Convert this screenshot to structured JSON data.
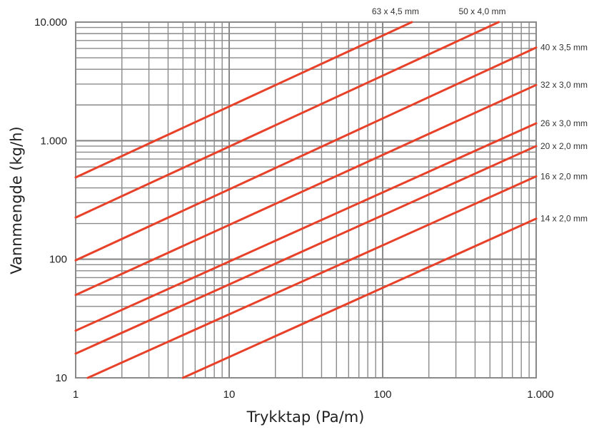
{
  "chart_data": {
    "type": "line",
    "xlabel": "Trykktap (Pa/m)",
    "ylabel": "Vannmengde (kg/h)",
    "x_scale": "log",
    "y_scale": "log",
    "xlim": [
      1,
      1000
    ],
    "ylim": [
      10,
      10000
    ],
    "grid": true,
    "x_ticks": [
      {
        "value": 1,
        "label": "1"
      },
      {
        "value": 10,
        "label": "10"
      },
      {
        "value": 100,
        "label": "100"
      },
      {
        "value": 1000,
        "label": "1.000"
      }
    ],
    "y_ticks": [
      {
        "value": 10,
        "label": "10"
      },
      {
        "value": 100,
        "label": "100"
      },
      {
        "value": 1000,
        "label": "1.000"
      },
      {
        "value": 10000,
        "label": "10.000"
      }
    ],
    "line_color": "#e8412a",
    "grid_color": "#8a8a8a",
    "series": [
      {
        "name": "63 x 4,5 mm",
        "x": [
          1,
          155
        ],
        "y": [
          490,
          10000
        ]
      },
      {
        "name": "50 x 4,0 mm",
        "x": [
          1,
          570
        ],
        "y": [
          225,
          10000
        ]
      },
      {
        "name": "40 x 3,5 mm",
        "x": [
          1,
          1000
        ],
        "y": [
          98,
          6100
        ]
      },
      {
        "name": "32 x 3,0 mm",
        "x": [
          1,
          1000
        ],
        "y": [
          50,
          2950
        ]
      },
      {
        "name": "26 x 3,0 mm",
        "x": [
          1,
          1000
        ],
        "y": [
          25,
          1400
        ]
      },
      {
        "name": "20 x 2,0 mm",
        "x": [
          1,
          1000
        ],
        "y": [
          16,
          900
        ]
      },
      {
        "name": "16 x 2,0 mm",
        "x": [
          1.2,
          1000
        ],
        "y": [
          10,
          500
        ]
      },
      {
        "name": "14 x 2,0 mm",
        "x": [
          5,
          1000
        ],
        "y": [
          10,
          220
        ]
      }
    ]
  }
}
